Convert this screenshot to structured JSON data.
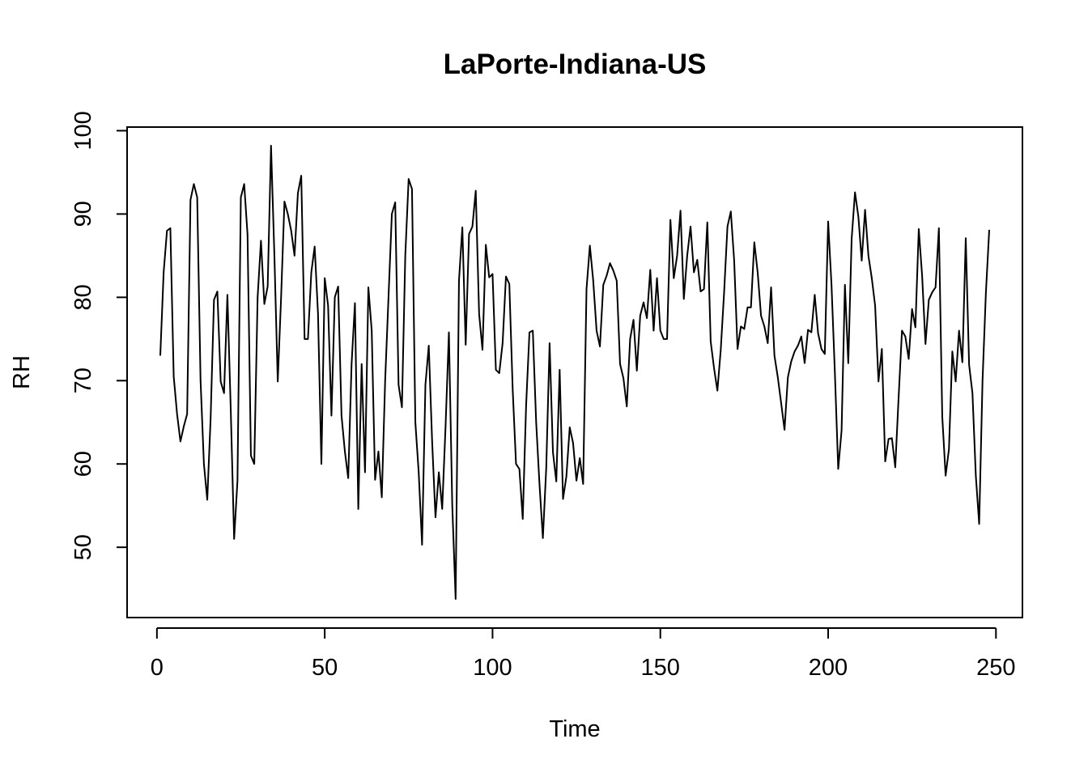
{
  "chart_data": {
    "type": "line",
    "title": "LaPorte-Indiana-US",
    "xlabel": "Time",
    "ylabel": "RH",
    "xlim": [
      1,
      248
    ],
    "ylim": [
      43.8,
      98.2
    ],
    "x_ticks": [
      0,
      50,
      100,
      150,
      200,
      250
    ],
    "y_ticks": [
      50,
      60,
      70,
      80,
      90,
      100
    ],
    "grid": false,
    "legend": "none",
    "series": [
      {
        "name": "RH",
        "color": "#000000",
        "x_start": 1,
        "values": [
          73,
          83,
          88,
          88.3,
          70.5,
          66,
          62.7,
          64.5,
          66,
          91.7,
          93.6,
          92,
          70,
          60,
          55.7,
          65.5,
          79.7,
          80.7,
          69.9,
          68.5,
          80.3,
          66.5,
          51,
          58,
          92,
          93.6,
          87.5,
          61,
          60,
          80,
          86.8,
          79.2,
          81.3,
          98.2,
          85,
          69.9,
          80,
          91.5,
          90,
          88,
          85,
          92.5,
          94.6,
          75,
          75,
          83,
          86.1,
          78,
          60,
          82.3,
          79,
          65.8,
          80,
          81.3,
          65.8,
          61.5,
          58.3,
          72,
          79.3,
          54.6,
          72,
          59,
          81.2,
          76,
          58.1,
          61.5,
          56,
          70,
          80,
          90,
          91.4,
          69.5,
          66.8,
          85,
          94.2,
          93,
          65,
          59,
          50.3,
          69.5,
          74.2,
          62.7,
          53.6,
          59,
          54.6,
          64.5,
          75.8,
          55,
          43.8,
          82,
          88.4,
          74.3,
          87.6,
          88.5,
          92.8,
          78,
          73.7,
          86.3,
          82.4,
          82.8,
          71.3,
          70.9,
          74.5,
          82.5,
          81.6,
          69,
          60,
          59.4,
          53.4,
          67,
          75.8,
          76,
          65,
          57.5,
          51.1,
          59.5,
          74.5,
          61.4,
          57.9,
          71.3,
          55.8,
          58.5,
          64.4,
          62.5,
          58,
          60.7,
          57.6,
          81,
          86.2,
          82,
          76,
          74.1,
          81.5,
          82.6,
          84.1,
          83.2,
          82,
          72,
          70.3,
          66.9,
          75,
          77.3,
          71.2,
          77.8,
          79.4,
          77.5,
          83.3,
          76,
          82.3,
          76,
          75,
          75,
          89.3,
          82.3,
          85,
          90.4,
          79.8,
          85,
          88.5,
          83,
          84.5,
          80.7,
          81,
          89,
          74.7,
          71.5,
          68.8,
          73.7,
          80.6,
          88.5,
          90.3,
          84.4,
          73.8,
          76.5,
          76.2,
          78.8,
          78.8,
          86.6,
          83,
          77.8,
          76.5,
          74.5,
          81.2,
          73,
          70.4,
          67.3,
          64.1,
          70.4,
          72.3,
          73.5,
          74.2,
          75.3,
          72.1,
          76.1,
          75.8,
          80.3,
          75.7,
          73.8,
          73.2,
          89.1,
          81.5,
          71,
          59.4,
          64,
          81.5,
          72.1,
          87,
          92.6,
          89.7,
          84.4,
          90.5,
          85,
          82.3,
          79,
          69.9,
          73.8,
          60.3,
          63,
          63.1,
          59.6,
          68,
          76,
          75.3,
          72.6,
          78.6,
          76.4,
          88.2,
          82.6,
          74.4,
          79.7,
          80.6,
          81.2,
          88.3,
          65.7,
          58.6,
          61.8,
          73.5,
          69.9,
          76,
          72.2,
          87.1,
          71.9,
          68.5,
          58.6,
          52.8,
          70,
          80.5,
          88.1
        ]
      }
    ]
  }
}
